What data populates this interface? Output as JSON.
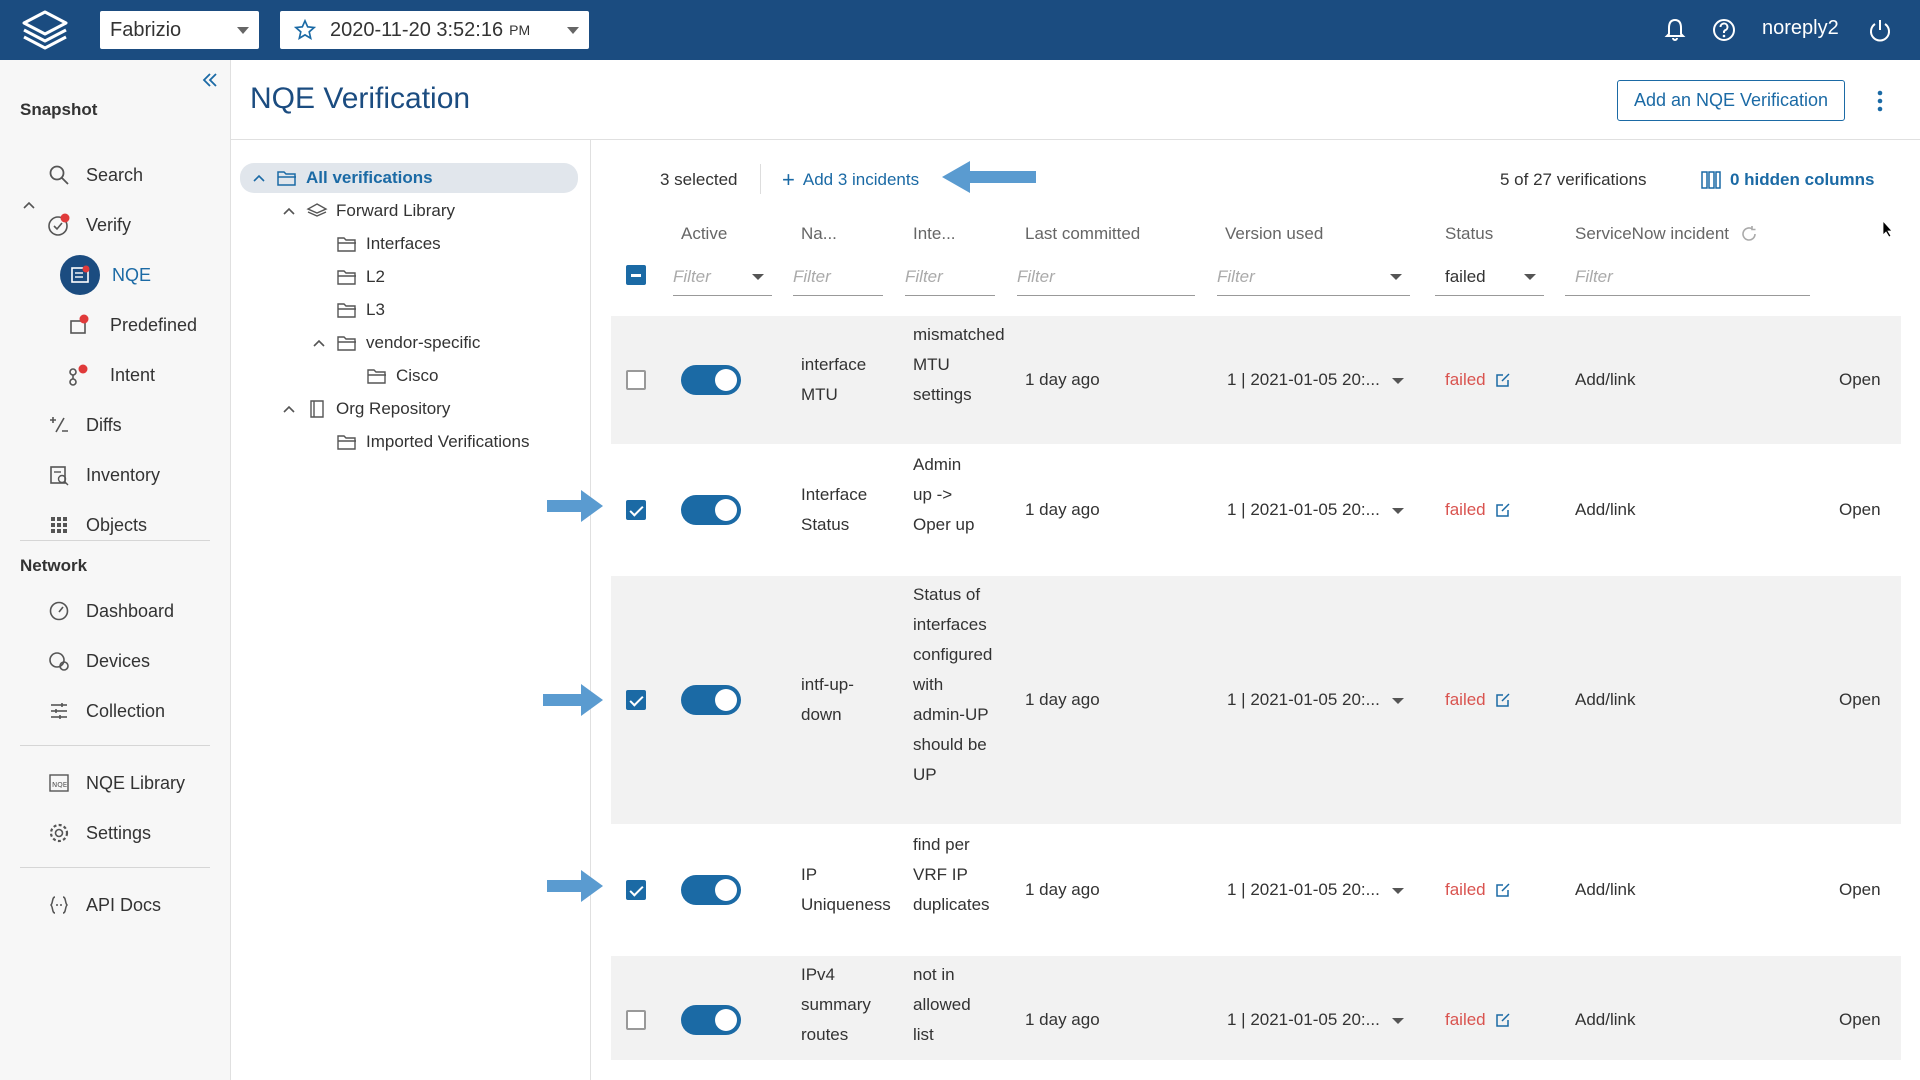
{
  "topbar": {
    "network": "Fabrizio",
    "snapshot_time": "2020-11-20  3:52:16",
    "snapshot_ampm": "PM",
    "user": "noreply2"
  },
  "sidebar": {
    "snapshot_title": "Snapshot",
    "search": "Search",
    "verify": "Verify",
    "nqe": "NQE",
    "predefined": "Predefined",
    "intent": "Intent",
    "diffs": "Diffs",
    "inventory": "Inventory",
    "objects": "Objects",
    "network_title": "Network",
    "dashboard": "Dashboard",
    "devices": "Devices",
    "collection": "Collection",
    "nqe_library": "NQE Library",
    "settings": "Settings",
    "api_docs": "API Docs"
  },
  "header": {
    "title": "NQE Verification",
    "add_button": "Add an NQE Verification"
  },
  "tree": {
    "all": "All verifications",
    "forward_library": "Forward Library",
    "interfaces": "Interfaces",
    "l2": "L2",
    "l3": "L3",
    "vendor_specific": "vendor-specific",
    "cisco": "Cisco",
    "org_repository": "Org Repository",
    "imported": "Imported Verifications"
  },
  "toolbar": {
    "selected": "3 selected",
    "add_incidents": "Add 3 incidents",
    "count": "5 of 27 verifications",
    "hidden_columns": "0 hidden columns"
  },
  "columns": {
    "active": "Active",
    "name": "Na...",
    "intent": "Inte...",
    "last_committed": "Last committed",
    "version_used": "Version used",
    "status": "Status",
    "servicenow": "ServiceNow incident",
    "filter_placeholder": "Filter",
    "status_filter": "failed"
  },
  "rows": [
    {
      "name": [
        "interface",
        "MTU"
      ],
      "intent": [
        "mismatched",
        "MTU",
        "settings"
      ],
      "committed": "1 day ago",
      "version": "1 | 2021-01-05 20:...",
      "status": "failed",
      "incident": "Add/link",
      "open": "Open"
    },
    {
      "name": [
        "Interface",
        "Status"
      ],
      "intent": [
        "Admin",
        "up ->",
        "Oper up"
      ],
      "committed": "1 day ago",
      "version": "1 | 2021-01-05 20:...",
      "status": "failed",
      "incident": "Add/link",
      "open": "Open"
    },
    {
      "name": [
        "intf-up-",
        "down"
      ],
      "intent": [
        "Status of",
        "interfaces",
        "configured",
        "with",
        "admin-UP",
        "should be",
        "UP"
      ],
      "committed": "1 day ago",
      "version": "1 | 2021-01-05 20:...",
      "status": "failed",
      "incident": "Add/link",
      "open": "Open"
    },
    {
      "name": [
        "IP",
        "Uniqueness"
      ],
      "intent": [
        "find per",
        "VRF IP",
        "duplicates"
      ],
      "committed": "1 day ago",
      "version": "1 | 2021-01-05 20:...",
      "status": "failed",
      "incident": "Add/link",
      "open": "Open"
    },
    {
      "name": [
        "IPv4",
        "summary",
        "routes"
      ],
      "intent": [
        "not in",
        "allowed",
        "list"
      ],
      "committed": "1 day ago",
      "version": "1 | 2021-01-05 20:...",
      "status": "failed",
      "incident": "Add/link",
      "open": "Open"
    }
  ]
}
